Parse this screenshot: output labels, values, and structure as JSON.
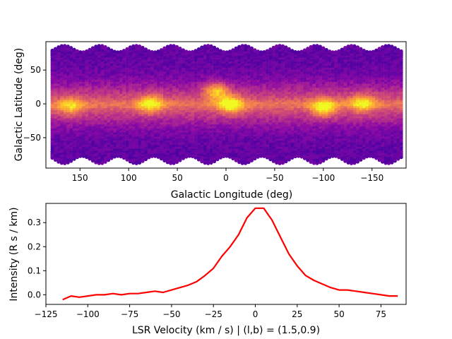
{
  "chart_data": [
    {
      "type": "heatmap",
      "projection": "plate-carree sky map (scatter of colored points)",
      "colormap": "plasma",
      "xlabel": "Galactic Longitude (deg)",
      "ylabel": "Galactic Latitude (deg)",
      "xlim": [
        185,
        -185
      ],
      "ylim": [
        -95,
        92
      ],
      "x_inverted": true,
      "xticks": [
        150,
        100,
        50,
        0,
        -50,
        -100,
        -150
      ],
      "yticks": [
        50,
        0,
        -50
      ],
      "xtick_labels": [
        "150",
        "100",
        "50",
        "0",
        "−50",
        "−100",
        "−150"
      ],
      "ytick_labels": [
        "50",
        "0",
        "−50"
      ],
      "bright_regions": [
        {
          "l": 78,
          "b": 1,
          "level": 0.8
        },
        {
          "l": 10,
          "b": 20,
          "level": 0.85
        },
        {
          "l": -5,
          "b": 0,
          "level": 0.95
        },
        {
          "l": -100,
          "b": -5,
          "level": 0.9
        },
        {
          "l": -140,
          "b": 2,
          "level": 0.75
        },
        {
          "l": 160,
          "b": -3,
          "level": 0.6
        }
      ],
      "grid": false
    },
    {
      "type": "line",
      "xlabel": "LSR Velocity (km / s) | (l,b) = (1.5,0.9)",
      "ylabel": "Intensity (R s / km)",
      "xlim": [
        -125,
        90
      ],
      "ylim": [
        -0.04,
        0.38
      ],
      "xticks": [
        -125,
        -100,
        -75,
        -50,
        -25,
        0,
        25,
        50,
        75
      ],
      "xtick_labels": [
        "−125",
        "−100",
        "−75",
        "−50",
        "−25",
        "0",
        "25",
        "50",
        "75"
      ],
      "yticks": [
        0.0,
        0.1,
        0.2,
        0.3
      ],
      "ytick_labels": [
        "0.0",
        "0.1",
        "0.2",
        "0.3"
      ],
      "series": [
        {
          "color": "#ff0000",
          "x": [
            -115,
            -110,
            -105,
            -100,
            -95,
            -90,
            -85,
            -80,
            -75,
            -70,
            -65,
            -60,
            -55,
            -50,
            -45,
            -40,
            -35,
            -30,
            -25,
            -20,
            -15,
            -10,
            -5,
            0,
            5,
            10,
            15,
            20,
            25,
            30,
            35,
            40,
            45,
            50,
            55,
            60,
            65,
            70,
            75,
            80,
            85
          ],
          "y": [
            -0.02,
            -0.005,
            -0.01,
            -0.005,
            0.0,
            0.0,
            0.005,
            0.0,
            0.005,
            0.005,
            0.01,
            0.015,
            0.01,
            0.02,
            0.03,
            0.04,
            0.055,
            0.08,
            0.11,
            0.16,
            0.2,
            0.25,
            0.32,
            0.36,
            0.36,
            0.31,
            0.24,
            0.17,
            0.12,
            0.08,
            0.06,
            0.045,
            0.03,
            0.02,
            0.02,
            0.015,
            0.01,
            0.005,
            0.0,
            -0.005,
            -0.005
          ]
        }
      ],
      "grid": false
    }
  ]
}
